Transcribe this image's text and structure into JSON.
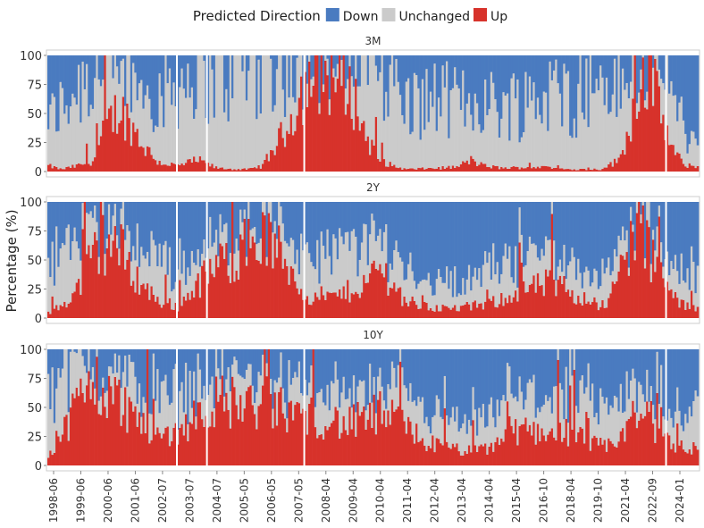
{
  "chart_data": {
    "type": "bar",
    "stacked": true,
    "legend": {
      "title": "Predicted Direction",
      "entries": [
        {
          "name": "Down",
          "color": "#4a7bc0"
        },
        {
          "name": "Unchanged",
          "color": "#cbcbcb"
        },
        {
          "name": "Up",
          "color": "#d7322b"
        }
      ],
      "placement": "top-center"
    },
    "ylabel": "Percentage (%)",
    "ylim": [
      0,
      100
    ],
    "yticks": [
      0,
      25,
      50,
      75,
      100
    ],
    "x_tick_labels": [
      "1998-06",
      "1999-06",
      "2000-06",
      "2001-06",
      "2002-07",
      "2003-07",
      "2004-07",
      "2005-05",
      "2006-05",
      "2007-05",
      "2008-04",
      "2009-04",
      "2010-04",
      "2011-04",
      "2012-04",
      "2013-04",
      "2014-04",
      "2015-04",
      "2016-10",
      "2018-04",
      "2019-10",
      "2021-04",
      "2022-09",
      "2024-01"
    ],
    "period_start": "1998-06",
    "period_end": "2025-03",
    "bar_frequency": "monthly (approx.)",
    "panels": [
      {
        "title": "3M",
        "series": [
          {
            "name": "Up",
            "anchors": [
              [
                0,
                5
              ],
              [
                0.02,
                2
              ],
              [
                0.045,
                5
              ],
              [
                0.07,
                10
              ],
              [
                0.09,
                40
              ],
              [
                0.11,
                55
              ],
              [
                0.13,
                38
              ],
              [
                0.15,
                20
              ],
              [
                0.17,
                8
              ],
              [
                0.2,
                5
              ],
              [
                0.23,
                10
              ],
              [
                0.26,
                3
              ],
              [
                0.29,
                2
              ],
              [
                0.31,
                2
              ],
              [
                0.33,
                5
              ],
              [
                0.37,
                40
              ],
              [
                0.39,
                70
              ],
              [
                0.41,
                80
              ],
              [
                0.43,
                85
              ],
              [
                0.45,
                80
              ],
              [
                0.47,
                65
              ],
              [
                0.49,
                30
              ],
              [
                0.51,
                10
              ],
              [
                0.53,
                5
              ],
              [
                0.55,
                2
              ],
              [
                0.6,
                3
              ],
              [
                0.63,
                4
              ],
              [
                0.65,
                10
              ],
              [
                0.67,
                5
              ],
              [
                0.7,
                3
              ],
              [
                0.75,
                4
              ],
              [
                0.8,
                2
              ],
              [
                0.85,
                2
              ],
              [
                0.88,
                10
              ],
              [
                0.9,
                50
              ],
              [
                0.91,
                80
              ],
              [
                0.92,
                90
              ],
              [
                0.94,
                60
              ],
              [
                0.96,
                20
              ],
              [
                0.98,
                5
              ],
              [
                1,
                5
              ]
            ]
          },
          {
            "name": "Unchanged",
            "anchors": [
              [
                0,
                40
              ],
              [
                0.03,
                60
              ],
              [
                0.06,
                75
              ],
              [
                0.09,
                50
              ],
              [
                0.11,
                35
              ],
              [
                0.14,
                45
              ],
              [
                0.17,
                60
              ],
              [
                0.2,
                70
              ],
              [
                0.23,
                75
              ],
              [
                0.26,
                80
              ],
              [
                0.29,
                90
              ],
              [
                0.31,
                95
              ],
              [
                0.33,
                90
              ],
              [
                0.37,
                55
              ],
              [
                0.39,
                25
              ],
              [
                0.41,
                15
              ],
              [
                0.43,
                12
              ],
              [
                0.45,
                15
              ],
              [
                0.47,
                28
              ],
              [
                0.49,
                60
              ],
              [
                0.51,
                80
              ],
              [
                0.53,
                75
              ],
              [
                0.55,
                55
              ],
              [
                0.6,
                60
              ],
              [
                0.63,
                55
              ],
              [
                0.65,
                50
              ],
              [
                0.67,
                55
              ],
              [
                0.7,
                55
              ],
              [
                0.75,
                60
              ],
              [
                0.8,
                65
              ],
              [
                0.85,
                75
              ],
              [
                0.88,
                60
              ],
              [
                0.9,
                35
              ],
              [
                0.91,
                15
              ],
              [
                0.92,
                8
              ],
              [
                0.94,
                30
              ],
              [
                0.96,
                50
              ],
              [
                0.98,
                30
              ],
              [
                1,
                20
              ]
            ]
          }
        ]
      },
      {
        "title": "2Y",
        "series": [
          {
            "name": "Up",
            "anchors": [
              [
                0,
                5
              ],
              [
                0.02,
                10
              ],
              [
                0.045,
                25
              ],
              [
                0.07,
                55
              ],
              [
                0.09,
                68
              ],
              [
                0.11,
                60
              ],
              [
                0.13,
                40
              ],
              [
                0.15,
                25
              ],
              [
                0.17,
                15
              ],
              [
                0.2,
                10
              ],
              [
                0.23,
                30
              ],
              [
                0.26,
                45
              ],
              [
                0.29,
                55
              ],
              [
                0.31,
                65
              ],
              [
                0.33,
                70
              ],
              [
                0.35,
                60
              ],
              [
                0.37,
                45
              ],
              [
                0.39,
                25
              ],
              [
                0.41,
                15
              ],
              [
                0.45,
                20
              ],
              [
                0.49,
                30
              ],
              [
                0.51,
                45
              ],
              [
                0.53,
                30
              ],
              [
                0.55,
                15
              ],
              [
                0.58,
                10
              ],
              [
                0.62,
                8
              ],
              [
                0.65,
                10
              ],
              [
                0.68,
                12
              ],
              [
                0.71,
                20
              ],
              [
                0.74,
                25
              ],
              [
                0.77,
                30
              ],
              [
                0.8,
                25
              ],
              [
                0.83,
                15
              ],
              [
                0.86,
                10
              ],
              [
                0.88,
                40
              ],
              [
                0.9,
                70
              ],
              [
                0.91,
                80
              ],
              [
                0.92,
                65
              ],
              [
                0.94,
                40
              ],
              [
                0.96,
                20
              ],
              [
                0.98,
                10
              ],
              [
                1,
                10
              ]
            ]
          },
          {
            "name": "Unchanged",
            "anchors": [
              [
                0,
                50
              ],
              [
                0.03,
                45
              ],
              [
                0.06,
                30
              ],
              [
                0.08,
                20
              ],
              [
                0.1,
                15
              ],
              [
                0.12,
                20
              ],
              [
                0.15,
                30
              ],
              [
                0.18,
                35
              ],
              [
                0.21,
                30
              ],
              [
                0.24,
                25
              ],
              [
                0.27,
                20
              ],
              [
                0.3,
                18
              ],
              [
                0.33,
                15
              ],
              [
                0.36,
                25
              ],
              [
                0.39,
                30
              ],
              [
                0.42,
                35
              ],
              [
                0.45,
                40
              ],
              [
                0.48,
                35
              ],
              [
                0.51,
                25
              ],
              [
                0.54,
                30
              ],
              [
                0.57,
                25
              ],
              [
                0.6,
                25
              ],
              [
                0.64,
                20
              ],
              [
                0.68,
                30
              ],
              [
                0.72,
                30
              ],
              [
                0.76,
                25
              ],
              [
                0.8,
                25
              ],
              [
                0.84,
                25
              ],
              [
                0.88,
                20
              ],
              [
                0.9,
                10
              ],
              [
                0.92,
                12
              ],
              [
                0.95,
                25
              ],
              [
                0.98,
                25
              ],
              [
                1,
                25
              ]
            ]
          }
        ]
      },
      {
        "title": "10Y",
        "series": [
          {
            "name": "Up",
            "anchors": [
              [
                0,
                10
              ],
              [
                0.02,
                25
              ],
              [
                0.045,
                55
              ],
              [
                0.07,
                70
              ],
              [
                0.09,
                65
              ],
              [
                0.11,
                55
              ],
              [
                0.13,
                45
              ],
              [
                0.15,
                35
              ],
              [
                0.17,
                25
              ],
              [
                0.2,
                30
              ],
              [
                0.23,
                45
              ],
              [
                0.26,
                55
              ],
              [
                0.29,
                55
              ],
              [
                0.31,
                50
              ],
              [
                0.33,
                55
              ],
              [
                0.35,
                50
              ],
              [
                0.37,
                45
              ],
              [
                0.39,
                45
              ],
              [
                0.41,
                40
              ],
              [
                0.43,
                40
              ],
              [
                0.46,
                35
              ],
              [
                0.49,
                40
              ],
              [
                0.51,
                45
              ],
              [
                0.53,
                40
              ],
              [
                0.55,
                35
              ],
              [
                0.58,
                20
              ],
              [
                0.62,
                15
              ],
              [
                0.65,
                12
              ],
              [
                0.68,
                15
              ],
              [
                0.71,
                30
              ],
              [
                0.74,
                30
              ],
              [
                0.77,
                30
              ],
              [
                0.8,
                30
              ],
              [
                0.83,
                20
              ],
              [
                0.86,
                15
              ],
              [
                0.88,
                25
              ],
              [
                0.9,
                40
              ],
              [
                0.92,
                45
              ],
              [
                0.94,
                30
              ],
              [
                0.96,
                20
              ],
              [
                0.98,
                15
              ],
              [
                1,
                15
              ]
            ]
          },
          {
            "name": "Unchanged",
            "anchors": [
              [
                0,
                55
              ],
              [
                0.03,
                45
              ],
              [
                0.06,
                25
              ],
              [
                0.08,
                15
              ],
              [
                0.1,
                20
              ],
              [
                0.12,
                25
              ],
              [
                0.15,
                30
              ],
              [
                0.18,
                35
              ],
              [
                0.21,
                30
              ],
              [
                0.24,
                25
              ],
              [
                0.27,
                25
              ],
              [
                0.3,
                25
              ],
              [
                0.33,
                20
              ],
              [
                0.36,
                25
              ],
              [
                0.39,
                25
              ],
              [
                0.42,
                25
              ],
              [
                0.45,
                25
              ],
              [
                0.48,
                25
              ],
              [
                0.51,
                20
              ],
              [
                0.54,
                25
              ],
              [
                0.57,
                25
              ],
              [
                0.6,
                25
              ],
              [
                0.64,
                20
              ],
              [
                0.68,
                25
              ],
              [
                0.72,
                30
              ],
              [
                0.76,
                30
              ],
              [
                0.8,
                30
              ],
              [
                0.84,
                30
              ],
              [
                0.88,
                30
              ],
              [
                0.9,
                25
              ],
              [
                0.92,
                20
              ],
              [
                0.95,
                25
              ],
              [
                0.98,
                30
              ],
              [
                1,
                30
              ]
            ]
          }
        ]
      }
    ]
  }
}
